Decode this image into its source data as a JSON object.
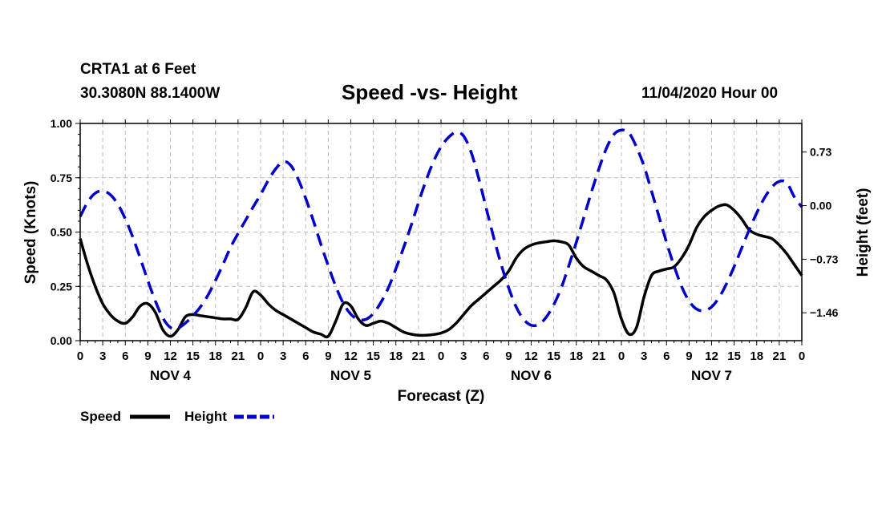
{
  "header": {
    "station": "CRTA1 at 6 Feet",
    "coordinates": "30.3080N 88.1400W",
    "title": "Speed -vs- Height",
    "datetime": "11/04/2020 Hour 00"
  },
  "legend": {
    "speed_label": "Speed",
    "height_label": "Height"
  },
  "colors": {
    "speed": "#000000",
    "height": "#0000cc",
    "grid": "#bbbbbb"
  },
  "chart_data": {
    "type": "line",
    "title": "Speed -vs- Height",
    "xlabel": "Forecast (Z)",
    "ylabel_left": "Speed (Knots)",
    "ylabel_right": "Height (feet)",
    "xlim": [
      0,
      96
    ],
    "ylim_left": [
      0,
      1.0
    ],
    "ylim_right": [
      -1.84,
      1.12
    ],
    "x_ticks": [
      0,
      3,
      6,
      9,
      12,
      15,
      18,
      21,
      24,
      27,
      30,
      33,
      36,
      39,
      42,
      45,
      48,
      51,
      54,
      57,
      60,
      63,
      66,
      69,
      72,
      75,
      78,
      81,
      84,
      87,
      90,
      93,
      96
    ],
    "x_tick_labels": [
      "0",
      "3",
      "6",
      "9",
      "12",
      "15",
      "18",
      "21",
      "0",
      "3",
      "6",
      "9",
      "12",
      "15",
      "18",
      "21",
      "0",
      "3",
      "6",
      "9",
      "12",
      "15",
      "18",
      "21",
      "0",
      "3",
      "6",
      "9",
      "12",
      "15",
      "18",
      "21",
      "0"
    ],
    "day_labels": [
      {
        "x": 12,
        "label": "NOV 4"
      },
      {
        "x": 36,
        "label": "NOV 5"
      },
      {
        "x": 60,
        "label": "NOV 6"
      },
      {
        "x": 84,
        "label": "NOV 7"
      }
    ],
    "y_left_ticks": [
      0.0,
      0.25,
      0.5,
      0.75,
      1.0
    ],
    "y_left_tick_labels": [
      "0.00",
      "0.25",
      "0.50",
      "0.75",
      "1.00"
    ],
    "y_right_ticks": [
      0.73,
      0.0,
      -0.73,
      -1.46
    ],
    "y_right_tick_labels": [
      "0.73",
      "0.00",
      "−0.73",
      "−1.46"
    ],
    "grid": true,
    "legend_position": "bottom-left",
    "series": [
      {
        "name": "Speed",
        "axis": "left",
        "style": "solid",
        "x": [
          0,
          1,
          2,
          3,
          4,
          5,
          6,
          7,
          8,
          9,
          10,
          11,
          12,
          13,
          14,
          15,
          16,
          17,
          18,
          19,
          20,
          21,
          22,
          23,
          24,
          25,
          26,
          27,
          28,
          29,
          30,
          31,
          32,
          33,
          34,
          35,
          36,
          37,
          38,
          39,
          40,
          41,
          42,
          43,
          44,
          45,
          46,
          47,
          48,
          49,
          50,
          51,
          52,
          53,
          54,
          55,
          56,
          57,
          58,
          59,
          60,
          61,
          62,
          63,
          64,
          65,
          66,
          67,
          68,
          69,
          70,
          71,
          72,
          73,
          74,
          75,
          76,
          77,
          78,
          79,
          80,
          81,
          82,
          83,
          84,
          85,
          86,
          87,
          88,
          89,
          90,
          91,
          92,
          93,
          94,
          95,
          96
        ],
        "values": [
          0.47,
          0.35,
          0.25,
          0.17,
          0.12,
          0.09,
          0.08,
          0.11,
          0.16,
          0.17,
          0.13,
          0.05,
          0.02,
          0.05,
          0.11,
          0.12,
          0.115,
          0.11,
          0.105,
          0.1,
          0.1,
          0.098,
          0.15,
          0.225,
          0.21,
          0.17,
          0.14,
          0.12,
          0.1,
          0.08,
          0.06,
          0.04,
          0.03,
          0.02,
          0.09,
          0.17,
          0.16,
          0.1,
          0.07,
          0.08,
          0.09,
          0.08,
          0.06,
          0.04,
          0.03,
          0.025,
          0.025,
          0.028,
          0.035,
          0.05,
          0.08,
          0.12,
          0.16,
          0.19,
          0.22,
          0.25,
          0.28,
          0.32,
          0.38,
          0.42,
          0.44,
          0.45,
          0.455,
          0.46,
          0.455,
          0.44,
          0.38,
          0.34,
          0.32,
          0.3,
          0.28,
          0.22,
          0.1,
          0.03,
          0.06,
          0.2,
          0.3,
          0.32,
          0.33,
          0.34,
          0.38,
          0.44,
          0.52,
          0.57,
          0.6,
          0.62,
          0.625,
          0.6,
          0.56,
          0.51,
          0.49,
          0.48,
          0.47,
          0.44,
          0.4,
          0.35,
          0.3
        ]
      },
      {
        "name": "Height",
        "axis": "right",
        "style": "dashed",
        "x": [
          0,
          1,
          2,
          3,
          4,
          5,
          6,
          7,
          8,
          9,
          10,
          11,
          12,
          13,
          14,
          15,
          16,
          17,
          18,
          19,
          20,
          21,
          22,
          23,
          24,
          25,
          26,
          27,
          28,
          29,
          30,
          31,
          32,
          33,
          34,
          35,
          36,
          37,
          38,
          39,
          40,
          41,
          42,
          43,
          44,
          45,
          46,
          47,
          48,
          49,
          50,
          51,
          52,
          53,
          54,
          55,
          56,
          57,
          58,
          59,
          60,
          61,
          62,
          63,
          64,
          65,
          66,
          67,
          68,
          69,
          70,
          71,
          72,
          73,
          74,
          75,
          76,
          77,
          78,
          79,
          80,
          81,
          82,
          83,
          84,
          85,
          86,
          87,
          88,
          89,
          90,
          91,
          92,
          93,
          94,
          95,
          96
        ],
        "values": [
          -0.15,
          0.05,
          0.17,
          0.2,
          0.15,
          0.02,
          -0.18,
          -0.43,
          -0.72,
          -1.02,
          -1.3,
          -1.53,
          -1.66,
          -1.67,
          -1.6,
          -1.5,
          -1.38,
          -1.22,
          -1.02,
          -0.8,
          -0.57,
          -0.38,
          -0.2,
          -0.02,
          0.15,
          0.34,
          0.5,
          0.6,
          0.55,
          0.36,
          0.1,
          -0.2,
          -0.52,
          -0.82,
          -1.1,
          -1.33,
          -1.48,
          -1.55,
          -1.55,
          -1.47,
          -1.32,
          -1.12,
          -0.86,
          -0.58,
          -0.28,
          0.04,
          0.34,
          0.6,
          0.8,
          0.93,
          1.0,
          0.95,
          0.73,
          0.38,
          -0.03,
          -0.43,
          -0.8,
          -1.12,
          -1.38,
          -1.55,
          -1.63,
          -1.62,
          -1.52,
          -1.35,
          -1.12,
          -0.82,
          -0.5,
          -0.16,
          0.18,
          0.5,
          0.78,
          0.97,
          1.03,
          0.99,
          0.8,
          0.54,
          0.2,
          -0.15,
          -0.5,
          -0.82,
          -1.1,
          -1.3,
          -1.41,
          -1.43,
          -1.38,
          -1.25,
          -1.06,
          -0.83,
          -0.58,
          -0.33,
          -0.1,
          0.1,
          0.25,
          0.33,
          0.31,
          0.12,
          -0.02
        ]
      }
    ]
  }
}
